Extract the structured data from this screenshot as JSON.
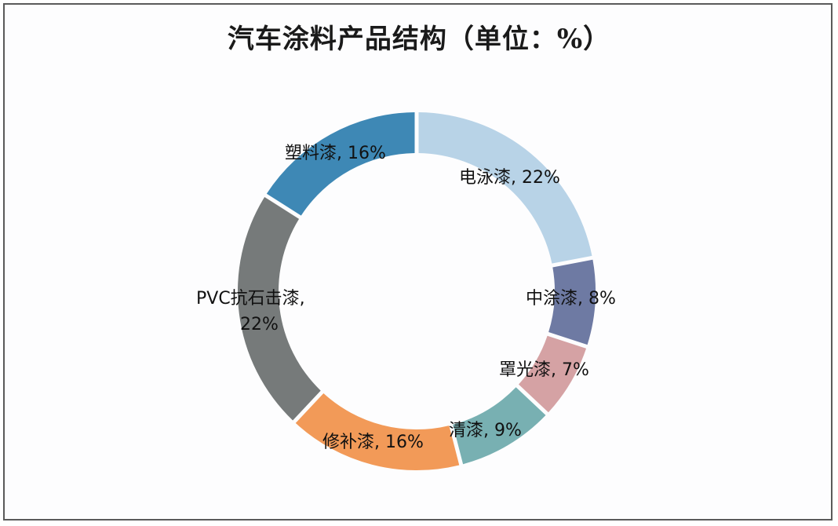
{
  "title": "汽车涂料产品结构（单位：%）",
  "chart_data": {
    "type": "pie",
    "variant": "donut",
    "title": "汽车涂料产品结构（单位：%）",
    "unit": "%",
    "start_angle": "12 o'clock, clockwise",
    "categories": [
      "电泳漆",
      "中涂漆",
      "罩光漆",
      "清漆",
      "修补漆",
      "PVC抗石击漆",
      "塑料漆"
    ],
    "values": [
      22,
      8,
      7,
      9,
      16,
      22,
      16
    ],
    "colors": [
      "#b8d3e7",
      "#6e7aa3",
      "#d5a2a4",
      "#78b0b2",
      "#f29a58",
      "#767a7a",
      "#3e88b5"
    ],
    "labels": [
      "电泳漆, 22%",
      "中涂漆, 8%",
      "罩光漆, 7%",
      "清漆, 9%",
      "修补漆, 16%",
      "PVC抗石击漆, 22%",
      "塑料漆, 16%"
    ],
    "legend": "none (data labels on slices)"
  },
  "labels": {
    "s0": "电泳漆, 22%",
    "s1": "中涂漆, 8%",
    "s2": "罩光漆, 7%",
    "s3": "清漆, 9%",
    "s4": "修补漆, 16%",
    "s5a": "PVC抗石击漆,",
    "s5b": "22%",
    "s6": "塑料漆, 16%"
  }
}
